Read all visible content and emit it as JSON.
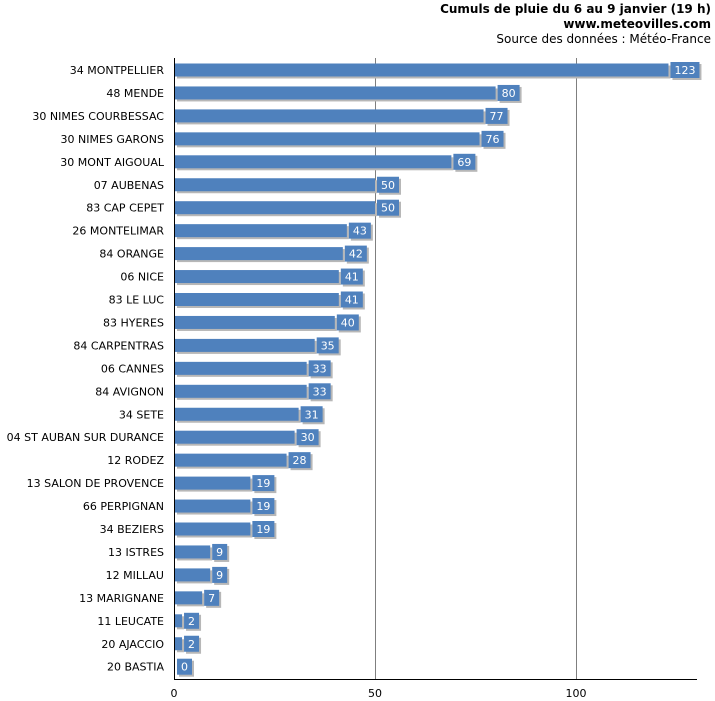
{
  "header": {
    "title": "Cumuls de pluie du 6 au 9 janvier (19 h)",
    "site": "www.meteovilles.com",
    "source": "Source des données : Météo-France"
  },
  "colors": {
    "bar": "#4f81bd",
    "shadow": "#b7b7b7",
    "grid": "#7f7f7f"
  },
  "chart_data": {
    "type": "bar",
    "orientation": "horizontal",
    "title": "Cumuls de pluie du 6 au 9 janvier (19 h)",
    "xlabel": "",
    "ylabel": "",
    "xlim": [
      0,
      130
    ],
    "xticks": [
      0,
      50,
      100
    ],
    "grid": true,
    "categories": [
      "34 MONTPELLIER",
      "48 MENDE",
      "30 NIMES COURBESSAC",
      "30 NIMES GARONS",
      "30 MONT AIGOUAL",
      "07 AUBENAS",
      "83 CAP CEPET",
      "26 MONTELIMAR",
      "84 ORANGE",
      "06 NICE",
      "83 LE LUC",
      "83 HYERES",
      "84 CARPENTRAS",
      "06 CANNES",
      "84 AVIGNON",
      "34 SETE",
      "04 ST AUBAN SUR DURANCE",
      "12 RODEZ",
      "13 SALON DE PROVENCE",
      "66 PERPIGNAN",
      "34 BEZIERS",
      "13 ISTRES",
      "12 MILLAU",
      "13 MARIGNANE",
      "11 LEUCATE",
      "20 AJACCIO",
      "20 BASTIA"
    ],
    "values": [
      123,
      80,
      77,
      76,
      69,
      50,
      50,
      43,
      42,
      41,
      41,
      40,
      35,
      33,
      33,
      31,
      30,
      28,
      19,
      19,
      19,
      9,
      9,
      7,
      2,
      2,
      0
    ]
  }
}
